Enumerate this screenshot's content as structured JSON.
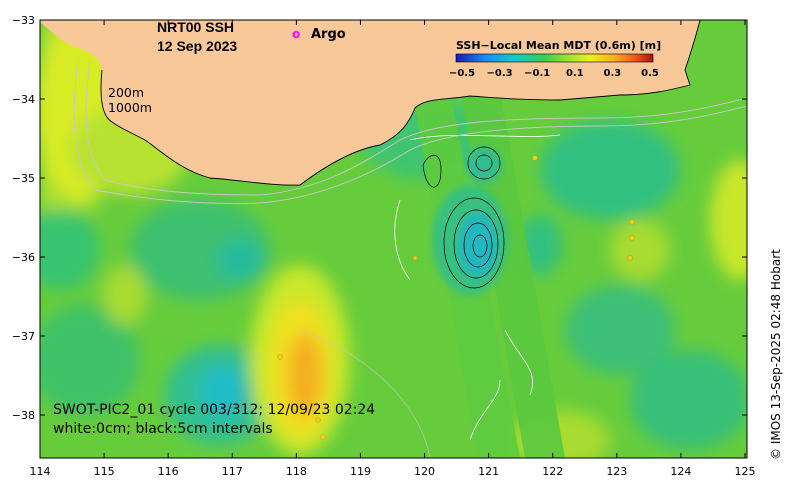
{
  "title_line1": "NRT00 SSH",
  "title_line2": "12 Sep 2023",
  "legend_argo_marker": "o",
  "legend_argo_label": "Argo",
  "colorbar": {
    "label": "SSH−Local Mean MDT (0.6m) [m]",
    "ticks": [
      "−0.5",
      "−0.3",
      "−0.1",
      "0.1",
      "0.3",
      "0.5"
    ],
    "min": -0.5,
    "max": 0.5
  },
  "isobath_labels": [
    "200m",
    "1000m"
  ],
  "pass_info_line1": "SWOT-PIC2_01 cycle 003/312; 12/09/23 02:24",
  "pass_info_line2": "white:0cm; black:5cm intervals",
  "credit": "© IMOS 13-Sep-2025 02:48 Hobart",
  "x_ticks": [
    "114",
    "115",
    "116",
    "117",
    "118",
    "119",
    "120",
    "121",
    "122",
    "123",
    "124",
    "125"
  ],
  "y_ticks": [
    "−33",
    "−34",
    "−35",
    "−36",
    "−37",
    "−38"
  ],
  "colors": {
    "land": "#f9c899",
    "field_base": "#6cd03c",
    "argo_marker": "#ff00ff",
    "contour_zero": "#ffffff",
    "contour_5cm": "#000000"
  }
}
